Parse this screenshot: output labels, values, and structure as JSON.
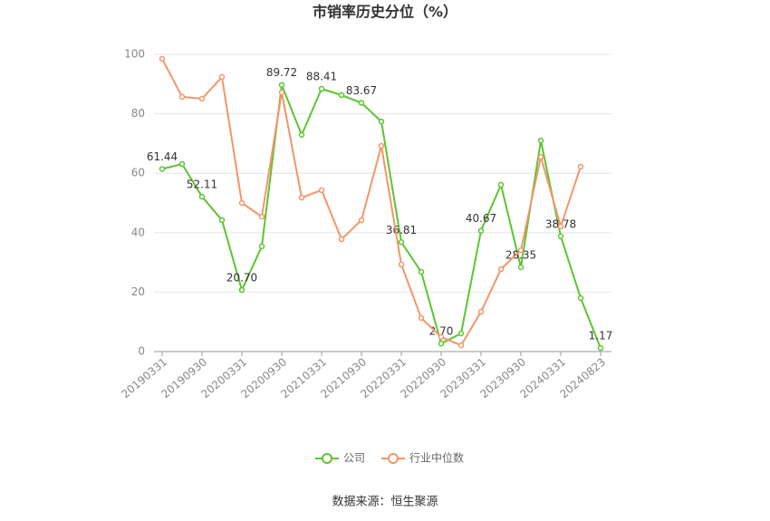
{
  "chart_data": {
    "type": "line",
    "title": "市销率历史分位（%）",
    "categories": [
      "20190331",
      null,
      "20190930",
      null,
      "20200331",
      null,
      "20200930",
      null,
      "20210331",
      null,
      "20210930",
      null,
      "20220331",
      null,
      "20220930",
      null,
      "20230331",
      null,
      "20230930",
      null,
      "20240331",
      null,
      "20240823"
    ],
    "series": [
      {
        "name": "公司",
        "color": "#5cc531",
        "values": [
          61.44,
          63.1,
          52.11,
          44.2,
          20.7,
          35.4,
          89.72,
          72.9,
          88.41,
          86.3,
          83.67,
          77.4,
          36.81,
          26.8,
          2.7,
          6.1,
          40.67,
          56.1,
          28.35,
          71.0,
          38.78,
          18.0,
          1.17
        ],
        "value_labels": [
          "61.44",
          null,
          "52.11",
          null,
          "20.70",
          null,
          "89.72",
          null,
          "88.41",
          null,
          "83.67",
          null,
          "36.81",
          null,
          "2.70",
          null,
          "40.67",
          null,
          "28.35",
          null,
          "38.78",
          null,
          "1.17"
        ]
      },
      {
        "name": "行业中位数",
        "color": "#f4956a",
        "values": [
          98.5,
          85.7,
          85.1,
          92.4,
          50.0,
          45.4,
          87.2,
          51.8,
          54.3,
          37.8,
          44.2,
          69.2,
          29.3,
          11.3,
          4.9,
          2.1,
          13.4,
          27.7,
          34.1,
          65.5,
          42.1,
          62.2,
          null
        ]
      }
    ],
    "ylim": [
      0,
      100
    ],
    "yticks": [
      0,
      20,
      40,
      60,
      80,
      100
    ],
    "grid": true,
    "legend": "bottom",
    "source": "数据来源：恒生聚源"
  }
}
